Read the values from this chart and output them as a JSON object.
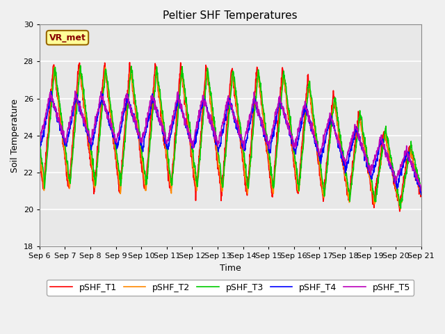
{
  "title": "Peltier SHF Temperatures",
  "xlabel": "Time",
  "ylabel": "Soil Temperature",
  "ylim": [
    18,
    30
  ],
  "yticks": [
    18,
    20,
    22,
    24,
    26,
    28,
    30
  ],
  "xlim_days": [
    0,
    15
  ],
  "xtick_labels": [
    "Sep 6",
    "Sep 7",
    "Sep 8",
    "Sep 9",
    "Sep 10",
    "Sep 11",
    "Sep 12",
    "Sep 13",
    "Sep 14",
    "Sep 15",
    "Sep 16",
    "Sep 17",
    "Sep 18",
    "Sep 19",
    "Sep 20",
    "Sep 21"
  ],
  "legend_labels": [
    "pSHF_T1",
    "pSHF_T2",
    "pSHF_T3",
    "pSHF_T4",
    "pSHF_T5"
  ],
  "line_colors": [
    "#ff0000",
    "#ff8800",
    "#00cc00",
    "#0000ff",
    "#bb00bb"
  ],
  "annotation_text": "VR_met",
  "annotation_bg": "#ffff99",
  "annotation_border": "#996600",
  "plot_bg_color": "#e8e8e8",
  "fig_bg_color": "#f0f0f0",
  "grid_color": "#ffffff",
  "title_fontsize": 11,
  "axis_fontsize": 9,
  "tick_fontsize": 8,
  "legend_fontsize": 9,
  "linewidth": 1.2
}
